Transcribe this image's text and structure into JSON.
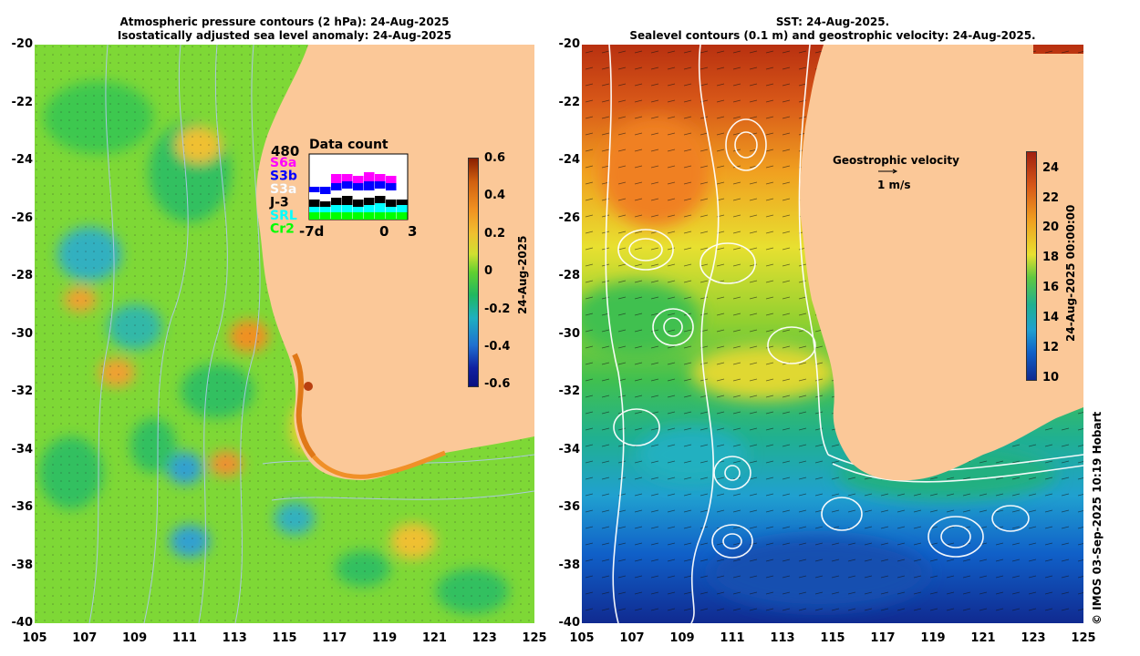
{
  "left_panel": {
    "title_line1": "Atmospheric pressure contours (2 hPa): 24-Aug-2025",
    "title_line2": "Isostatically adjusted sea level anomaly: 24-Aug-2025",
    "colorbar": {
      "ticks": [
        "0.6",
        "0.4",
        "0.2",
        "0",
        "-0.2",
        "-0.4",
        "-0.6"
      ],
      "label": "24-Aug-2025"
    },
    "data_count": {
      "title": "Data count",
      "max": "480",
      "missions": [
        {
          "name": "S6a",
          "color": "#ff00ff"
        },
        {
          "name": "S3b",
          "color": "#0000ff"
        },
        {
          "name": "S3a",
          "color": "#ffffff"
        },
        {
          "name": "J-3",
          "color": "#000000"
        },
        {
          "name": "SRL",
          "color": "#00ffff"
        },
        {
          "name": "Cr2",
          "color": "#00ff00"
        }
      ],
      "axis_labels": [
        "-7d",
        "0",
        "3"
      ]
    }
  },
  "right_panel": {
    "title_line1": "SST: 24-Aug-2025.",
    "title_line2": "Sealevel contours (0.1 m) and geostrophic velocity: 24-Aug-2025.",
    "colorbar": {
      "ticks": [
        "24",
        "22",
        "20",
        "18",
        "16",
        "14",
        "12",
        "10"
      ],
      "label": "24-Aug-2025 00:00:00"
    },
    "velocity_legend": {
      "title": "Geostrophic velocity",
      "scale": "1 m/s"
    }
  },
  "axes": {
    "y_ticks": [
      "-20",
      "-22",
      "-24",
      "-26",
      "-28",
      "-30",
      "-32",
      "-34",
      "-36",
      "-38",
      "-40"
    ],
    "x_ticks": [
      "105",
      "107",
      "109",
      "111",
      "113",
      "115",
      "117",
      "119",
      "121",
      "123",
      "125"
    ]
  },
  "credit": "© IMOS 03-Sep-2025 10:19 Hobart",
  "colors": {
    "land": "#fbc898",
    "anomaly_zero": "#22c840",
    "sst_warm": "#b83010",
    "sst_cold": "#1030a0"
  }
}
